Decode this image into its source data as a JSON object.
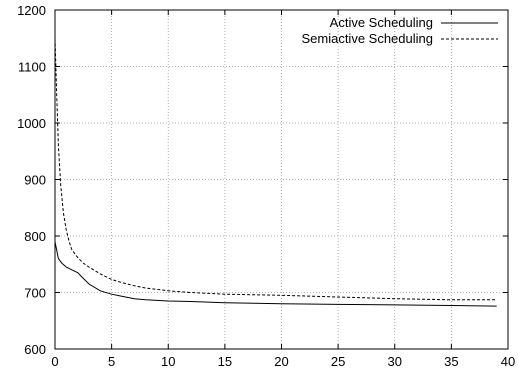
{
  "chart_data": {
    "type": "line",
    "title": "",
    "xlabel": "",
    "ylabel": "",
    "xlim": [
      0,
      40
    ],
    "ylim": [
      600,
      1200
    ],
    "xticks": [
      0,
      5,
      10,
      15,
      20,
      25,
      30,
      35,
      40
    ],
    "yticks": [
      600,
      700,
      800,
      900,
      1000,
      1100,
      1200
    ],
    "grid": true,
    "legend_position": "top-right",
    "series": [
      {
        "name": "Active Scheduling",
        "style": "solid",
        "color": "#000000",
        "x": [
          0,
          0.3,
          0.6,
          1,
          1.5,
          2,
          2.5,
          3,
          4,
          5,
          6,
          7,
          8,
          10,
          12,
          15,
          20,
          25,
          30,
          35,
          39
        ],
        "y": [
          790,
          760,
          752,
          745,
          740,
          735,
          725,
          715,
          703,
          697,
          693,
          689,
          687,
          685,
          684,
          682,
          680,
          679,
          678,
          677,
          676
        ]
      },
      {
        "name": "Semiactive Scheduling",
        "style": "dashed",
        "color": "#000000",
        "x": [
          0,
          0.15,
          0.3,
          0.5,
          0.75,
          1,
          1.25,
          1.5,
          2,
          2.5,
          3,
          4,
          5,
          6,
          7,
          8,
          10,
          12,
          15,
          20,
          25,
          30,
          35,
          39
        ],
        "y": [
          1150,
          1050,
          960,
          890,
          840,
          810,
          790,
          775,
          762,
          752,
          745,
          733,
          723,
          717,
          712,
          708,
          703,
          700,
          697,
          695,
          692,
          689,
          687,
          687
        ]
      }
    ]
  }
}
